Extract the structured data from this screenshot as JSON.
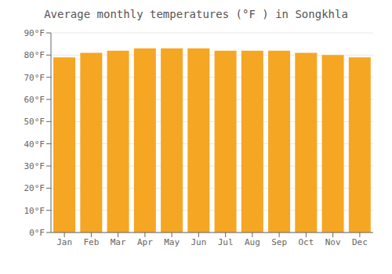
{
  "chart_data": {
    "type": "bar",
    "title": "Average monthly temperatures (°F ) in Songkhla",
    "categories": [
      "Jan",
      "Feb",
      "Mar",
      "Apr",
      "May",
      "Jun",
      "Jul",
      "Aug",
      "Sep",
      "Oct",
      "Nov",
      "Dec"
    ],
    "values": [
      79,
      81,
      82,
      83,
      83,
      83,
      82,
      82,
      82,
      81,
      80,
      79
    ],
    "color": "#F5A623",
    "ylim": [
      0,
      90
    ],
    "yticks": [
      {
        "value": 0,
        "label": "0°F"
      },
      {
        "value": 10,
        "label": "10°F"
      },
      {
        "value": 20,
        "label": "20°F"
      },
      {
        "value": 30,
        "label": "30°F"
      },
      {
        "value": 40,
        "label": "40°F"
      },
      {
        "value": 50,
        "label": "50°F"
      },
      {
        "value": 60,
        "label": "60°F"
      },
      {
        "value": 70,
        "label": "70°F"
      },
      {
        "value": 80,
        "label": "80°F"
      },
      {
        "value": 90,
        "label": "90°F"
      }
    ],
    "grid": true
  }
}
